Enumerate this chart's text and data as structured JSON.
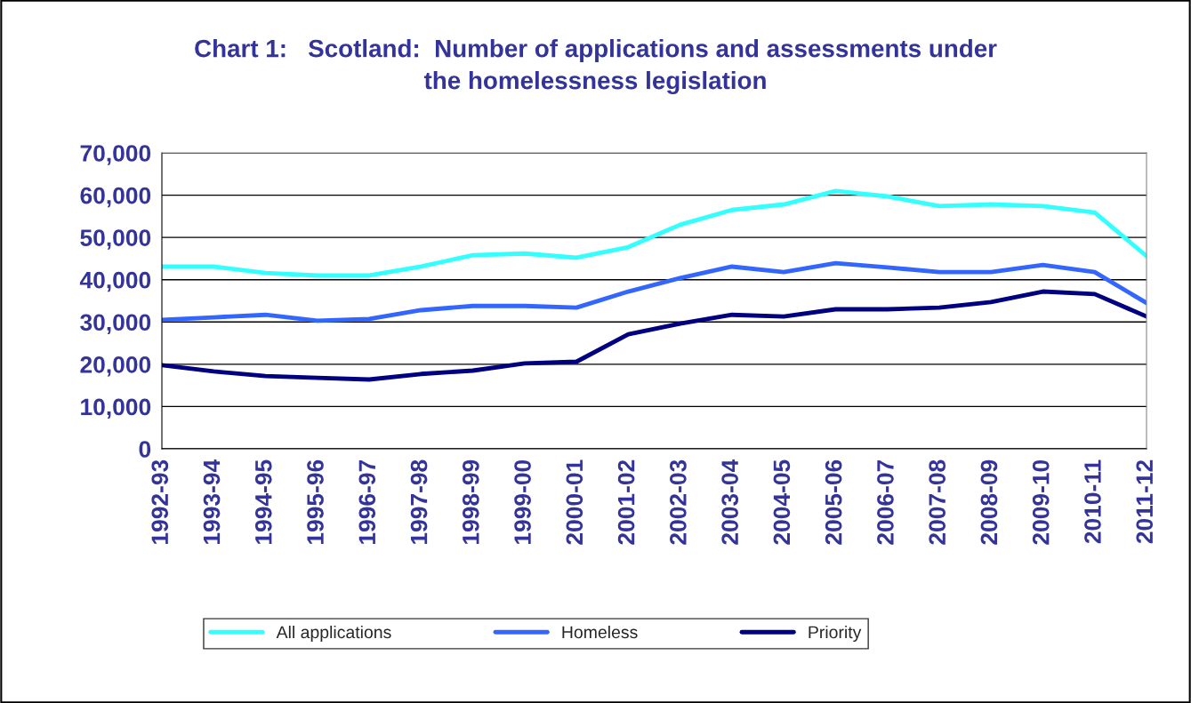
{
  "chart_data": {
    "type": "line",
    "title": "Chart 1:   Scotland:  Number of applications and assessments under\nthe homelessness legislation",
    "categories": [
      "1992-93",
      "1993-94",
      "1994-95",
      "1995-96",
      "1996-97",
      "1997-98",
      "1998-99",
      "1999-00",
      "2000-01",
      "2001-02",
      "2002-03",
      "2003-04",
      "2004-05",
      "2005-06",
      "2006-07",
      "2007-08",
      "2008-09",
      "2009-10",
      "2010-11",
      "2011-12"
    ],
    "series": [
      {
        "name": "All applications",
        "color": "#33ffff",
        "values": [
          43100,
          43100,
          41600,
          41000,
          41000,
          43100,
          45800,
          46200,
          45200,
          47700,
          53000,
          56500,
          57800,
          61000,
          59700,
          57400,
          57800,
          57400,
          55900,
          45600
        ]
      },
      {
        "name": "Homeless",
        "color": "#3366ff",
        "values": [
          30500,
          31100,
          31700,
          30300,
          30700,
          32800,
          33800,
          33800,
          33400,
          37200,
          40400,
          43100,
          41800,
          43900,
          42900,
          41800,
          41800,
          43500,
          41800,
          34500
        ]
      },
      {
        "name": "Priority",
        "color": "#000080",
        "values": [
          19800,
          18300,
          17200,
          16800,
          16400,
          17700,
          18500,
          20200,
          20600,
          27100,
          29600,
          31700,
          31300,
          33000,
          33000,
          33400,
          34700,
          37200,
          36600,
          31300
        ]
      }
    ],
    "ylim": [
      0,
      70000
    ],
    "yticks": [
      {
        "value": 0,
        "label": "0"
      },
      {
        "value": 10000,
        "label": "10,000"
      },
      {
        "value": 20000,
        "label": "20,000"
      },
      {
        "value": 30000,
        "label": "30,000"
      },
      {
        "value": 40000,
        "label": "40,000"
      },
      {
        "value": 50000,
        "label": "50,000"
      },
      {
        "value": 60000,
        "label": "60,000"
      },
      {
        "value": 70000,
        "label": "70,000"
      }
    ],
    "grid": "y",
    "legend": "bottom",
    "marker": "none",
    "line_style": "solid"
  }
}
